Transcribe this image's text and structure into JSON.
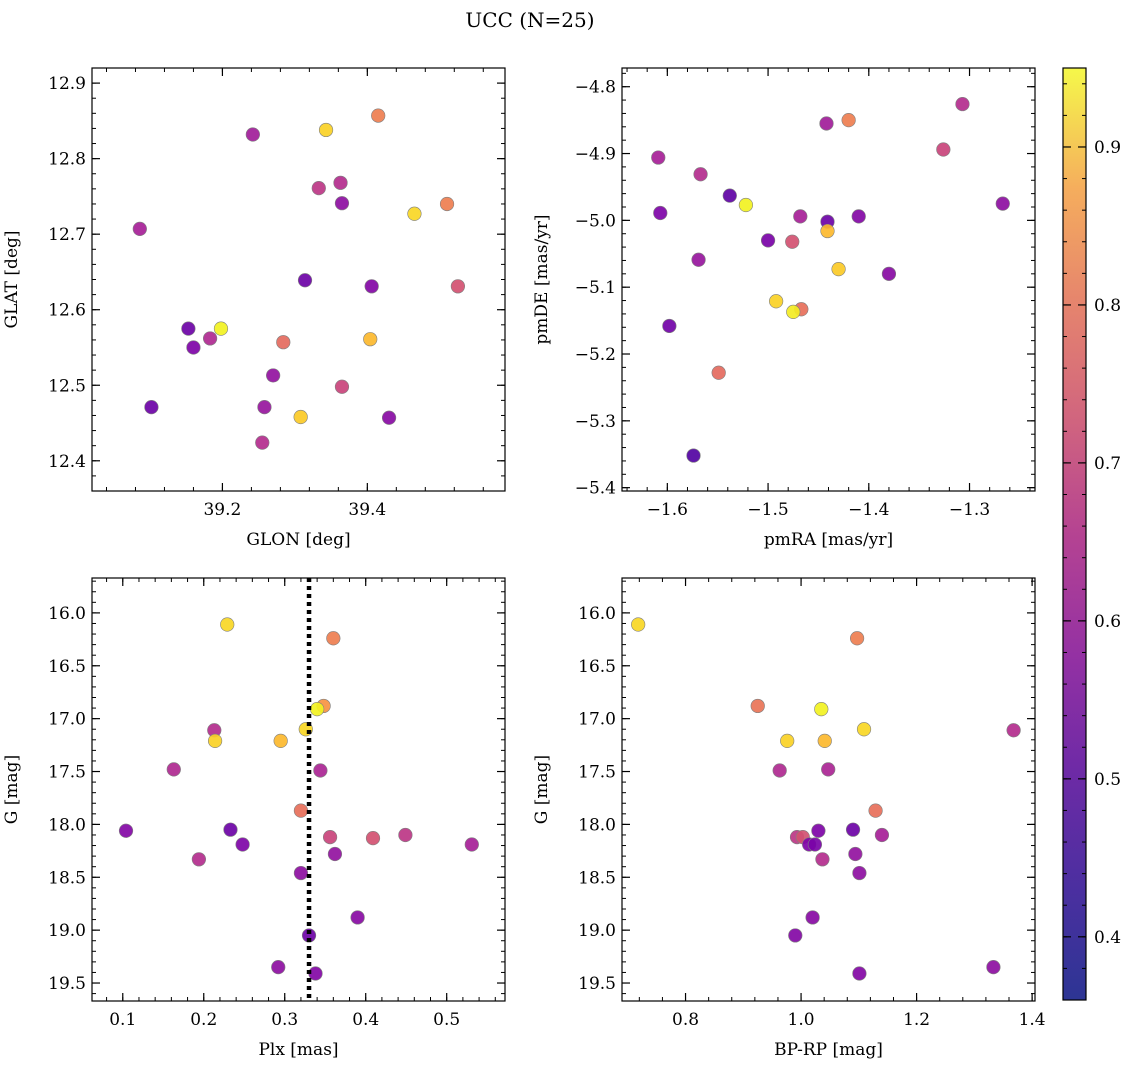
{
  "figure": {
    "title": "UCC (N=25)"
  },
  "colors": {
    "colormap": "plasma",
    "point_edge": "#808080",
    "reference_line": "#000000"
  },
  "colorbar": {
    "range": [
      0.36,
      0.95
    ],
    "ticks": [
      0.4,
      0.5,
      0.6,
      0.7,
      0.8,
      0.9
    ],
    "tick_labels": [
      "0.4",
      "0.5",
      "0.6",
      "0.7",
      "0.8",
      "0.9"
    ]
  },
  "chart_data": [
    {
      "type": "scatter",
      "id": "glon-glat",
      "xlabel": "GLON [deg]",
      "ylabel": "GLAT [deg]",
      "xlim": [
        39.02,
        39.59
      ],
      "ylim": [
        12.36,
        12.92
      ],
      "xticks": [
        39.2,
        39.4
      ],
      "xtick_labels": [
        "39.2",
        "39.4"
      ],
      "yticks": [
        12.4,
        12.5,
        12.6,
        12.7,
        12.8,
        12.9
      ],
      "ytick_labels": [
        "12.4",
        "12.5",
        "12.6",
        "12.7",
        "12.8",
        "12.9"
      ],
      "points": [
        {
          "x": 39.242,
          "y": 12.832,
          "c": 0.52
        },
        {
          "x": 39.343,
          "y": 12.838,
          "c": 0.89
        },
        {
          "x": 39.415,
          "y": 12.857,
          "c": 0.74
        },
        {
          "x": 39.363,
          "y": 12.768,
          "c": 0.56
        },
        {
          "x": 39.333,
          "y": 12.761,
          "c": 0.58
        },
        {
          "x": 39.365,
          "y": 12.741,
          "c": 0.48
        },
        {
          "x": 39.465,
          "y": 12.727,
          "c": 0.9
        },
        {
          "x": 39.51,
          "y": 12.74,
          "c": 0.74
        },
        {
          "x": 39.086,
          "y": 12.707,
          "c": 0.53
        },
        {
          "x": 39.314,
          "y": 12.639,
          "c": 0.42
        },
        {
          "x": 39.406,
          "y": 12.631,
          "c": 0.46
        },
        {
          "x": 39.525,
          "y": 12.631,
          "c": 0.64
        },
        {
          "x": 39.153,
          "y": 12.575,
          "c": 0.42
        },
        {
          "x": 39.198,
          "y": 12.575,
          "c": 0.94
        },
        {
          "x": 39.183,
          "y": 12.562,
          "c": 0.55
        },
        {
          "x": 39.404,
          "y": 12.561,
          "c": 0.85
        },
        {
          "x": 39.16,
          "y": 12.55,
          "c": 0.45
        },
        {
          "x": 39.284,
          "y": 12.557,
          "c": 0.7
        },
        {
          "x": 39.27,
          "y": 12.513,
          "c": 0.49
        },
        {
          "x": 39.365,
          "y": 12.498,
          "c": 0.61
        },
        {
          "x": 39.102,
          "y": 12.471,
          "c": 0.42
        },
        {
          "x": 39.258,
          "y": 12.471,
          "c": 0.5
        },
        {
          "x": 39.308,
          "y": 12.458,
          "c": 0.88
        },
        {
          "x": 39.43,
          "y": 12.457,
          "c": 0.47
        },
        {
          "x": 39.255,
          "y": 12.424,
          "c": 0.56
        }
      ]
    },
    {
      "type": "scatter",
      "id": "pmra-pmde",
      "xlabel": "pmRA [mas/yr]",
      "ylabel": "pmDE [mas/yr]",
      "xlim": [
        -1.645,
        -1.235
      ],
      "ylim": [
        -5.405,
        -4.772
      ],
      "xticks": [
        -1.6,
        -1.5,
        -1.4,
        -1.3
      ],
      "xtick_labels": [
        "−1.6",
        "−1.5",
        "−1.4",
        "−1.3"
      ],
      "yticks": [
        -5.4,
        -5.3,
        -5.2,
        -5.1,
        -5.0,
        -4.9,
        -4.8
      ],
      "ytick_labels": [
        "−5.4",
        "−5.3",
        "−5.2",
        "−5.1",
        "−5.0",
        "−4.9",
        "−4.8"
      ],
      "points": [
        {
          "x": -1.307,
          "y": -4.826,
          "c": 0.56
        },
        {
          "x": -1.42,
          "y": -4.85,
          "c": 0.74
        },
        {
          "x": -1.442,
          "y": -4.855,
          "c": 0.52
        },
        {
          "x": -1.609,
          "y": -4.906,
          "c": 0.53
        },
        {
          "x": -1.326,
          "y": -4.894,
          "c": 0.61
        },
        {
          "x": -1.567,
          "y": -4.931,
          "c": 0.56
        },
        {
          "x": -1.538,
          "y": -4.963,
          "c": 0.4
        },
        {
          "x": -1.522,
          "y": -4.977,
          "c": 0.94
        },
        {
          "x": -1.267,
          "y": -4.975,
          "c": 0.48
        },
        {
          "x": -1.607,
          "y": -4.989,
          "c": 0.45
        },
        {
          "x": -1.468,
          "y": -4.994,
          "c": 0.53
        },
        {
          "x": -1.41,
          "y": -4.994,
          "c": 0.46
        },
        {
          "x": -1.441,
          "y": -5.002,
          "c": 0.42
        },
        {
          "x": -1.441,
          "y": -5.016,
          "c": 0.85
        },
        {
          "x": -1.5,
          "y": -5.03,
          "c": 0.44
        },
        {
          "x": -1.476,
          "y": -5.032,
          "c": 0.64
        },
        {
          "x": -1.569,
          "y": -5.059,
          "c": 0.5
        },
        {
          "x": -1.43,
          "y": -5.073,
          "c": 0.88
        },
        {
          "x": -1.38,
          "y": -5.08,
          "c": 0.47
        },
        {
          "x": -1.492,
          "y": -5.121,
          "c": 0.89
        },
        {
          "x": -1.467,
          "y": -5.133,
          "c": 0.71
        },
        {
          "x": -1.475,
          "y": -5.137,
          "c": 0.93
        },
        {
          "x": -1.598,
          "y": -5.158,
          "c": 0.43
        },
        {
          "x": -1.549,
          "y": -5.228,
          "c": 0.7
        },
        {
          "x": -1.574,
          "y": -5.352,
          "c": 0.38
        }
      ]
    },
    {
      "type": "scatter",
      "id": "plx-g",
      "xlabel": "Plx [mas]",
      "ylabel": "G [mag]",
      "xlim": [
        0.062,
        0.572
      ],
      "ylim": [
        19.67,
        15.67
      ],
      "y_inverted": true,
      "xticks": [
        0.1,
        0.2,
        0.3,
        0.4,
        0.5
      ],
      "xtick_labels": [
        "0.1",
        "0.2",
        "0.3",
        "0.4",
        "0.5"
      ],
      "yticks": [
        16.0,
        16.5,
        17.0,
        17.5,
        18.0,
        18.5,
        19.0,
        19.5
      ],
      "ytick_labels": [
        "16.0",
        "16.5",
        "17.0",
        "17.5",
        "18.0",
        "18.5",
        "19.0",
        "19.5"
      ],
      "reference_line_x": 0.33,
      "points": [
        {
          "x": 0.229,
          "y": 16.11,
          "c": 0.9
        },
        {
          "x": 0.36,
          "y": 16.24,
          "c": 0.74
        },
        {
          "x": 0.348,
          "y": 16.88,
          "c": 0.78
        },
        {
          "x": 0.34,
          "y": 16.91,
          "c": 0.94
        },
        {
          "x": 0.213,
          "y": 17.11,
          "c": 0.56
        },
        {
          "x": 0.326,
          "y": 17.1,
          "c": 0.9
        },
        {
          "x": 0.214,
          "y": 17.21,
          "c": 0.89
        },
        {
          "x": 0.295,
          "y": 17.21,
          "c": 0.85
        },
        {
          "x": 0.163,
          "y": 17.48,
          "c": 0.55
        },
        {
          "x": 0.344,
          "y": 17.49,
          "c": 0.54
        },
        {
          "x": 0.32,
          "y": 17.87,
          "c": 0.71
        },
        {
          "x": 0.104,
          "y": 18.06,
          "c": 0.46
        },
        {
          "x": 0.233,
          "y": 18.05,
          "c": 0.42
        },
        {
          "x": 0.449,
          "y": 18.1,
          "c": 0.58
        },
        {
          "x": 0.356,
          "y": 18.12,
          "c": 0.61
        },
        {
          "x": 0.409,
          "y": 18.13,
          "c": 0.64
        },
        {
          "x": 0.248,
          "y": 18.19,
          "c": 0.45
        },
        {
          "x": 0.531,
          "y": 18.19,
          "c": 0.53
        },
        {
          "x": 0.362,
          "y": 18.28,
          "c": 0.49
        },
        {
          "x": 0.194,
          "y": 18.33,
          "c": 0.56
        },
        {
          "x": 0.32,
          "y": 18.46,
          "c": 0.48
        },
        {
          "x": 0.39,
          "y": 18.88,
          "c": 0.47
        },
        {
          "x": 0.33,
          "y": 19.05,
          "c": 0.42
        },
        {
          "x": 0.292,
          "y": 19.35,
          "c": 0.48
        },
        {
          "x": 0.338,
          "y": 19.41,
          "c": 0.46
        }
      ]
    },
    {
      "type": "scatter",
      "id": "bprp-g",
      "xlabel": "BP-RP [mag]",
      "ylabel": "G [mag]",
      "xlim": [
        0.69,
        1.405
      ],
      "ylim": [
        19.67,
        15.67
      ],
      "y_inverted": true,
      "xticks": [
        0.8,
        1.0,
        1.2,
        1.4
      ],
      "xtick_labels": [
        "0.8",
        "1.0",
        "1.2",
        "1.4"
      ],
      "yticks": [
        16.0,
        16.5,
        17.0,
        17.5,
        18.0,
        18.5,
        19.0,
        19.5
      ],
      "ytick_labels": [
        "16.0",
        "16.5",
        "17.0",
        "17.5",
        "18.0",
        "18.5",
        "19.0",
        "19.5"
      ],
      "points": [
        {
          "x": 0.718,
          "y": 16.11,
          "c": 0.9
        },
        {
          "x": 1.097,
          "y": 16.24,
          "c": 0.74
        },
        {
          "x": 0.925,
          "y": 16.88,
          "c": 0.72
        },
        {
          "x": 1.035,
          "y": 16.91,
          "c": 0.94
        },
        {
          "x": 1.109,
          "y": 17.1,
          "c": 0.9
        },
        {
          "x": 1.368,
          "y": 17.11,
          "c": 0.56
        },
        {
          "x": 0.976,
          "y": 17.21,
          "c": 0.89
        },
        {
          "x": 1.041,
          "y": 17.21,
          "c": 0.85
        },
        {
          "x": 0.963,
          "y": 17.49,
          "c": 0.55
        },
        {
          "x": 1.047,
          "y": 17.48,
          "c": 0.54
        },
        {
          "x": 1.129,
          "y": 17.87,
          "c": 0.71
        },
        {
          "x": 1.03,
          "y": 18.06,
          "c": 0.45
        },
        {
          "x": 1.09,
          "y": 18.05,
          "c": 0.42
        },
        {
          "x": 1.14,
          "y": 18.1,
          "c": 0.53
        },
        {
          "x": 0.993,
          "y": 18.12,
          "c": 0.58
        },
        {
          "x": 1.003,
          "y": 18.12,
          "c": 0.64
        },
        {
          "x": 1.014,
          "y": 18.19,
          "c": 0.45
        },
        {
          "x": 1.024,
          "y": 18.19,
          "c": 0.44
        },
        {
          "x": 1.094,
          "y": 18.28,
          "c": 0.49
        },
        {
          "x": 1.037,
          "y": 18.33,
          "c": 0.56
        },
        {
          "x": 1.101,
          "y": 18.46,
          "c": 0.48
        },
        {
          "x": 1.02,
          "y": 18.88,
          "c": 0.47
        },
        {
          "x": 0.99,
          "y": 19.05,
          "c": 0.46
        },
        {
          "x": 1.333,
          "y": 19.35,
          "c": 0.48
        },
        {
          "x": 1.101,
          "y": 19.41,
          "c": 0.46
        }
      ]
    }
  ]
}
